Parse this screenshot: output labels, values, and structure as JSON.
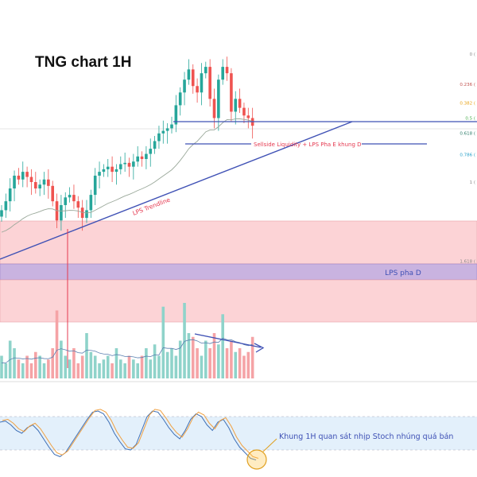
{
  "title": "TNG chart 1H",
  "colors": {
    "up": "#26a69a",
    "down": "#ef5350",
    "blue_line": "#3f51b5",
    "zone_pink": "#fcd3d6",
    "zone_purple": "#c9b3e0",
    "stoch_band": "#e3f0fb",
    "annotation_red": "#e53950",
    "ema": "#9aa89a"
  },
  "fib_levels": [
    {
      "label": "0 (",
      "level": 0,
      "color": "#888"
    },
    {
      "label": "0.236 (",
      "level": 0.236,
      "color": "#c0504d"
    },
    {
      "label": "0.382 (",
      "level": 0.382,
      "color": "#e8a317"
    },
    {
      "label": "0.5 (",
      "level": 0.5,
      "color": "#4caf50"
    },
    {
      "label": "0.618 (",
      "level": 0.618,
      "color": "#2e7d6b"
    },
    {
      "label": "0.786 (",
      "level": 0.786,
      "color": "#26a0c8"
    },
    {
      "label": "1 (",
      "level": 1,
      "color": "#888"
    },
    {
      "label": "1.618 (",
      "level": 1.618,
      "color": "#888"
    }
  ],
  "annotations": {
    "trendline": "LPS Trendline",
    "sellside": "Sellside Liquidity + LPS Pha E khung D",
    "zone_label": "LPS pha D",
    "stoch_note": "Khung 1H quan sát nhịp Stoch nhúng quá bán"
  },
  "chart_data": {
    "type": "candlestick",
    "title": "TNG chart 1H",
    "price_in_fib_units": [
      1.22,
      1.15,
      1.05,
      0.95,
      0.98,
      0.92,
      0.96,
      1.0,
      1.05,
      1.02,
      0.98,
      1.03,
      1.15,
      1.3,
      1.18,
      1.12,
      1.1,
      1.15,
      1.2,
      1.28,
      1.22,
      1.1,
      0.95,
      0.92,
      0.9,
      0.88,
      0.92,
      0.9,
      0.86,
      0.85,
      0.88,
      0.84,
      0.8,
      0.82,
      0.78,
      0.74,
      0.68,
      0.62,
      0.6,
      0.58,
      0.55,
      0.4,
      0.3,
      0.2,
      0.12,
      0.25,
      0.3,
      0.15,
      0.1,
      0.35,
      0.5,
      0.2,
      0.1,
      0.15,
      0.45,
      0.35,
      0.42,
      0.48,
      0.5,
      0.56
    ],
    "volume_relative": [
      0.3,
      0.2,
      0.5,
      0.4,
      0.25,
      0.2,
      0.3,
      0.2,
      0.35,
      0.3,
      0.2,
      0.25,
      0.4,
      0.9,
      0.5,
      0.3,
      0.25,
      0.4,
      0.2,
      0.3,
      0.6,
      0.35,
      0.3,
      0.2,
      0.25,
      0.3,
      0.2,
      0.4,
      0.25,
      0.2,
      0.3,
      0.25,
      0.2,
      0.3,
      0.4,
      0.25,
      0.45,
      0.3,
      0.95,
      0.35,
      0.4,
      0.3,
      0.5,
      1.0,
      0.6,
      0.55,
      0.4,
      0.3,
      0.5,
      0.4,
      0.6,
      0.45,
      0.85,
      0.4,
      0.5,
      0.35,
      0.4,
      0.3,
      0.35,
      0.55
    ],
    "stochastic": [
      70,
      72,
      65,
      55,
      50,
      60,
      65,
      55,
      40,
      25,
      12,
      8,
      15,
      30,
      45,
      60,
      75,
      88,
      90,
      85,
      70,
      50,
      35,
      22,
      20,
      30,
      55,
      80,
      90,
      88,
      75,
      60,
      48,
      40,
      55,
      75,
      85,
      80,
      65,
      55,
      70,
      75,
      60,
      40,
      25,
      15,
      5,
      2
    ],
    "stoch_band": [
      20,
      80
    ]
  }
}
